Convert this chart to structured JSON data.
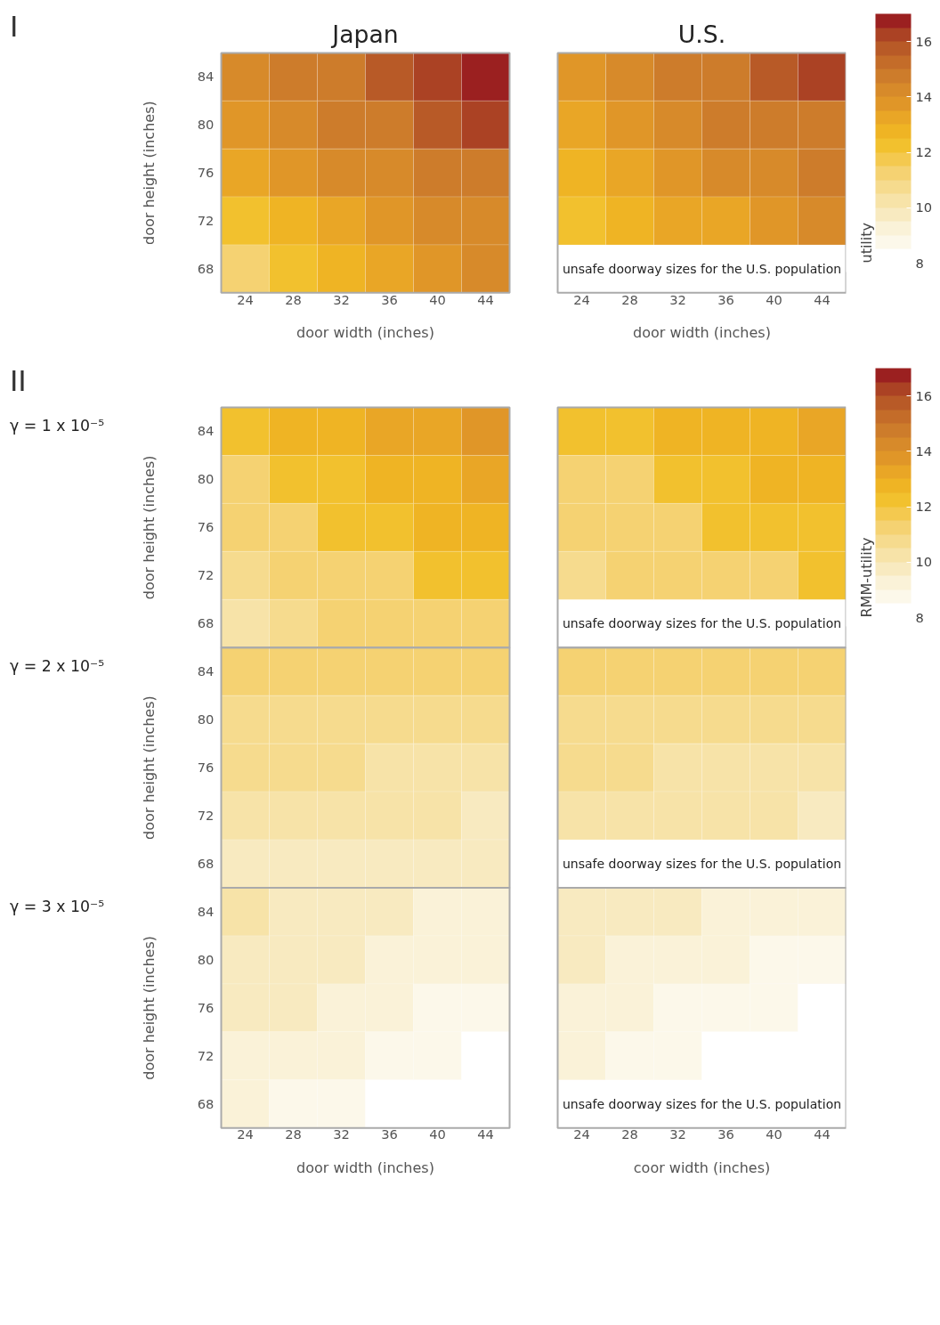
{
  "chart_data": [
    {
      "type": "heatmap",
      "xlabel": "door width (inches)",
      "ylabel": "door height (inches)",
      "clim": [
        8,
        17
      ],
      "cticks": [
        8,
        10,
        12,
        14,
        16
      ],
      "clabel": "utility",
      "annotations": [
        "I",
        "Japan",
        "U.S.",
        "unsafe doorway sizes for the U.S. population"
      ],
      "categories": [
        "24",
        "28",
        "32",
        "36",
        "40",
        "44",
        null,
        "24",
        "28",
        "32",
        "36",
        "40",
        "44"
      ],
      "y_categories": [
        "84",
        "80",
        "76",
        "72",
        "68"
      ],
      "cells": [
        [
          14,
          14.5,
          15,
          15.5,
          16,
          16.5,
          null,
          13.5,
          14,
          14.5,
          15,
          15.5,
          16
        ],
        [
          13.5,
          14,
          14.5,
          15,
          15.5,
          16,
          null,
          13,
          13.5,
          14,
          14.5,
          15,
          15
        ],
        [
          13,
          13.5,
          14,
          14,
          14.5,
          15,
          null,
          12.5,
          13,
          13.5,
          14,
          14,
          14.5
        ],
        [
          12,
          12.5,
          13,
          13.5,
          14,
          14,
          null,
          12,
          12.5,
          13,
          13,
          13.5,
          14
        ],
        [
          11.5,
          12,
          12.5,
          13,
          13.5,
          14,
          null,
          null,
          null,
          null,
          null,
          null,
          null
        ]
      ]
    },
    {
      "type": "heatmap",
      "xlabel": "door width (inches)",
      "ylabel": "door height (inches)",
      "clim": [
        8,
        17
      ],
      "cticks": [
        8,
        10,
        12,
        14,
        16
      ],
      "clabel": "RMM-utility",
      "annotations": [
        "II",
        "γ = 1 x 10⁻⁵",
        "γ = 2 x 10⁻⁵",
        "γ = 3 x 10⁻⁵",
        "unsafe doorway sizes for the U.S. population",
        "coor width (inches)"
      ],
      "categories": [
        "24",
        "28",
        "32",
        "36",
        "40",
        "44",
        null,
        "24",
        "28",
        "32",
        "36",
        "40",
        "44"
      ],
      "y_categories": [
        "84",
        "80",
        "76",
        "72",
        "68",
        "84",
        "80",
        "76",
        "72",
        "68",
        "84",
        "80",
        "76",
        "72",
        "68"
      ],
      "cells": [
        [
          12,
          12.5,
          12.5,
          13,
          13,
          13.5,
          null,
          12,
          12,
          12.5,
          12.5,
          12.5,
          13
        ],
        [
          11.5,
          12,
          12,
          12.5,
          12.5,
          13,
          null,
          11.5,
          11.5,
          12,
          12,
          12.5,
          12.5
        ],
        [
          11,
          11.5,
          12,
          12,
          12.5,
          12.5,
          null,
          11,
          11.5,
          11.5,
          12,
          12,
          12
        ],
        [
          10.5,
          11,
          11.5,
          11.5,
          12,
          12,
          null,
          10.5,
          11,
          11,
          11.5,
          11.5,
          12
        ],
        [
          10,
          10.5,
          11,
          11,
          11.5,
          11.5,
          null,
          null,
          null,
          null,
          null,
          null,
          null
        ],
        [
          11,
          11,
          11,
          11,
          11,
          11,
          null,
          11,
          11,
          11,
          11,
          11,
          11
        ],
        [
          10.5,
          10.5,
          10.5,
          10.5,
          10.5,
          10.5,
          null,
          10.5,
          10.5,
          10.5,
          10.5,
          10.5,
          10.5
        ],
        [
          10.5,
          10.5,
          10.5,
          10,
          10,
          10,
          null,
          10.5,
          10.5,
          10,
          10,
          10,
          10
        ],
        [
          10,
          10,
          10,
          10,
          10,
          9.5,
          null,
          10,
          10,
          10,
          10,
          10,
          9.5
        ],
        [
          9.5,
          9.5,
          9.5,
          9.5,
          9.5,
          9.5,
          null,
          null,
          null,
          null,
          null,
          null,
          null
        ],
        [
          10,
          9.5,
          9.5,
          9.5,
          9,
          9,
          null,
          9.5,
          9.5,
          9.5,
          9,
          9,
          9
        ],
        [
          9.5,
          9.5,
          9.5,
          9,
          9,
          9,
          null,
          9.5,
          9,
          9,
          9,
          8.5,
          8.5
        ],
        [
          9.5,
          9.5,
          9,
          9,
          8.5,
          8.5,
          null,
          9,
          9,
          8.5,
          8.5,
          8.5,
          8
        ],
        [
          9,
          9,
          9,
          8.5,
          8.5,
          8,
          null,
          9,
          8.5,
          8.5,
          8,
          8,
          8
        ],
        [
          9,
          8.5,
          8.5,
          8,
          8,
          8,
          null,
          null,
          null,
          null,
          null,
          null,
          null
        ]
      ]
    }
  ]
}
